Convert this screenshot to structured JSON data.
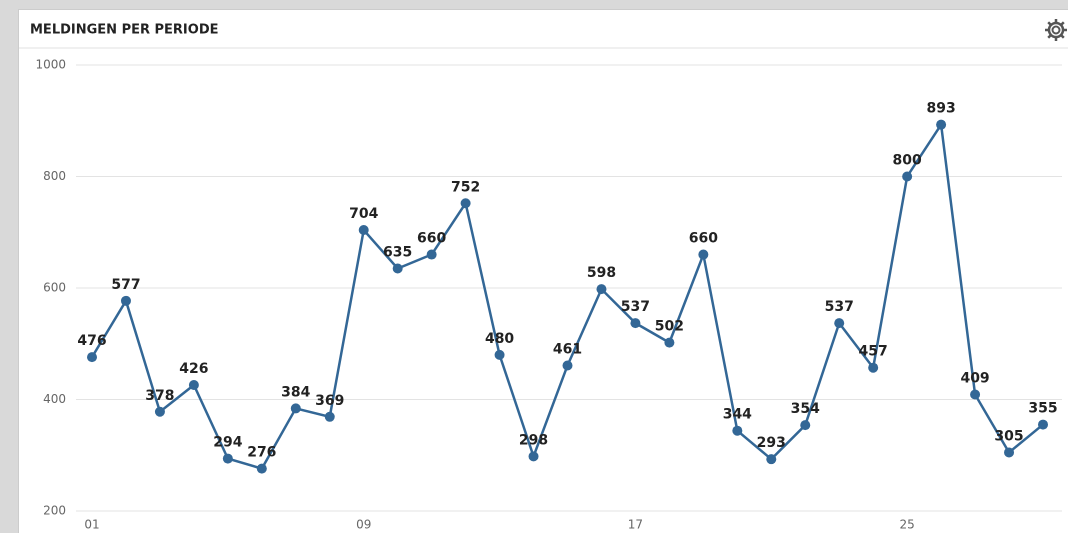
{
  "chart_data": {
    "type": "line",
    "title": "MELDINGEN PER PERIODE",
    "categories": [
      "01",
      null,
      null,
      null,
      null,
      null,
      null,
      null,
      "09",
      null,
      null,
      null,
      null,
      null,
      null,
      null,
      "17",
      null,
      null,
      null,
      null,
      null,
      null,
      null,
      "25",
      null,
      null,
      null,
      null
    ],
    "series": [
      {
        "name": null,
        "color": "#336796",
        "values": [
          476,
          577,
          378,
          426,
          294,
          276,
          384,
          369,
          704,
          635,
          660,
          752,
          480,
          298,
          461,
          598,
          537,
          502,
          660,
          344,
          293,
          354,
          537,
          457,
          800,
          893,
          409,
          305,
          355
        ]
      }
    ],
    "ylim": [
      200,
      1000
    ],
    "yticks": [
      200,
      400,
      600,
      800,
      1000
    ],
    "grid": true
  }
}
